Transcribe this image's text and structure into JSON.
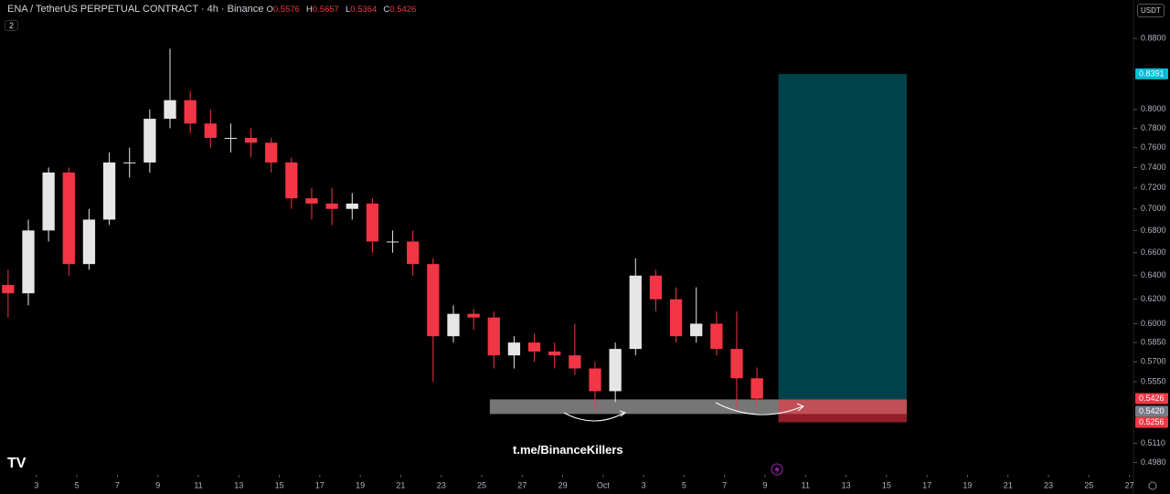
{
  "chart_data": {
    "type": "candlestick",
    "title": "ENA / TetherUS PERPETUAL CONTRACT · 4h · Binance",
    "ohlc_labels": [
      "O",
      "H",
      "L",
      "C"
    ],
    "currency": "USDT",
    "indicator_count": 2,
    "watermark": "t.me/BinanceKillers",
    "log_scale": true,
    "grid": false,
    "up_color": "#e6e6e6",
    "down_color": "#f23645",
    "x": [
      0.6,
      1.6,
      2.6,
      3.6,
      4.6,
      5.6,
      6.6,
      7.6,
      8.6,
      9.6,
      10.6,
      11.6,
      12.6,
      13.6,
      14.6,
      15.6,
      16.6,
      17.6,
      18.6,
      19.6,
      20.6,
      21.6,
      22.6,
      23.6,
      24.6,
      25.6,
      26.6,
      27.6,
      28.6,
      29.6,
      30.6,
      31.6,
      32.6,
      33.6,
      34.6,
      35.6,
      36.6,
      37.6
    ],
    "open": [
      0.632,
      0.625,
      0.68,
      0.735,
      0.65,
      0.69,
      0.745,
      0.745,
      0.79,
      0.81,
      0.785,
      0.77,
      0.77,
      0.765,
      0.745,
      0.71,
      0.705,
      0.7,
      0.705,
      0.67,
      0.67,
      0.65,
      0.59,
      0.608,
      0.605,
      0.575,
      0.585,
      0.578,
      0.575,
      0.565,
      0.548,
      0.58,
      0.64,
      0.62,
      0.59,
      0.6,
      0.58,
      0.5576
    ],
    "high": [
      0.645,
      0.69,
      0.74,
      0.74,
      0.7,
      0.755,
      0.76,
      0.8,
      0.868,
      0.82,
      0.8,
      0.785,
      0.78,
      0.77,
      0.75,
      0.72,
      0.72,
      0.715,
      0.71,
      0.68,
      0.68,
      0.655,
      0.615,
      0.612,
      0.61,
      0.59,
      0.592,
      0.585,
      0.6,
      0.57,
      0.585,
      0.655,
      0.645,
      0.63,
      0.63,
      0.61,
      0.61,
      0.5657
    ],
    "low": [
      0.605,
      0.615,
      0.67,
      0.64,
      0.645,
      0.685,
      0.73,
      0.735,
      0.78,
      0.775,
      0.76,
      0.755,
      0.75,
      0.735,
      0.7,
      0.69,
      0.685,
      0.69,
      0.66,
      0.66,
      0.64,
      0.555,
      0.585,
      0.595,
      0.565,
      0.565,
      0.57,
      0.565,
      0.56,
      0.535,
      0.54,
      0.575,
      0.61,
      0.585,
      0.585,
      0.575,
      0.535,
      0.5364
    ],
    "close": [
      0.625,
      0.68,
      0.735,
      0.65,
      0.69,
      0.745,
      0.745,
      0.79,
      0.81,
      0.785,
      0.77,
      0.77,
      0.765,
      0.745,
      0.71,
      0.705,
      0.7,
      0.705,
      0.67,
      0.67,
      0.65,
      0.59,
      0.608,
      0.605,
      0.575,
      0.585,
      0.578,
      0.575,
      0.565,
      0.548,
      0.58,
      0.64,
      0.62,
      0.59,
      0.6,
      0.58,
      0.5576,
      0.5426
    ],
    "xlim": [
      0.2,
      56.2
    ],
    "xticks": [
      {
        "value": 2,
        "label": "3"
      },
      {
        "value": 4,
        "label": "5"
      },
      {
        "value": 6,
        "label": "7"
      },
      {
        "value": 8,
        "label": "9"
      },
      {
        "value": 10,
        "label": "11"
      },
      {
        "value": 12,
        "label": "13"
      },
      {
        "value": 14,
        "label": "15"
      },
      {
        "value": 16,
        "label": "17"
      },
      {
        "value": 18,
        "label": "19"
      },
      {
        "value": 20,
        "label": "21"
      },
      {
        "value": 22,
        "label": "23"
      },
      {
        "value": 24,
        "label": "25"
      },
      {
        "value": 26,
        "label": "27"
      },
      {
        "value": 28,
        "label": "29"
      },
      {
        "value": 30,
        "label": "Oct"
      },
      {
        "value": 32,
        "label": "3"
      },
      {
        "value": 34,
        "label": "5"
      },
      {
        "value": 36,
        "label": "7"
      },
      {
        "value": 38,
        "label": "9"
      },
      {
        "value": 40,
        "label": "11"
      },
      {
        "value": 42,
        "label": "13"
      },
      {
        "value": 44,
        "label": "15"
      },
      {
        "value": 46,
        "label": "17"
      },
      {
        "value": 48,
        "label": "19"
      },
      {
        "value": 50,
        "label": "21"
      },
      {
        "value": 52,
        "label": "23"
      },
      {
        "value": 54,
        "label": "25"
      },
      {
        "value": 56,
        "label": "27"
      }
    ],
    "ylim": [
      0.4898,
      0.9266
    ],
    "yticks": [
      {
        "value": 0.498,
        "label": "0.4980"
      },
      {
        "value": 0.511,
        "label": "0.5110"
      },
      {
        "value": 0.555,
        "label": "0.5550"
      },
      {
        "value": 0.57,
        "label": "0.5700"
      },
      {
        "value": 0.585,
        "label": "0.5850"
      },
      {
        "value": 0.6,
        "label": "0.6000"
      },
      {
        "value": 0.62,
        "label": "0.6200"
      },
      {
        "value": 0.64,
        "label": "0.6400"
      },
      {
        "value": 0.66,
        "label": "0.6600"
      },
      {
        "value": 0.68,
        "label": "0.6800"
      },
      {
        "value": 0.7,
        "label": "0.7000"
      },
      {
        "value": 0.72,
        "label": "0.7200"
      },
      {
        "value": 0.74,
        "label": "0.7400"
      },
      {
        "value": 0.76,
        "label": "0.7600"
      },
      {
        "value": 0.78,
        "label": "0.7800"
      },
      {
        "value": 0.8,
        "label": "0.8000"
      },
      {
        "value": 0.88,
        "label": "0.8800"
      }
    ],
    "zone": {
      "x": [
        24.4,
        45.0
      ],
      "y": [
        0.5315,
        0.542
      ],
      "color": "#9e9e9e"
    },
    "position": {
      "x": [
        38.66,
        45.0
      ],
      "entry": {
        "value": 0.542,
        "label": "0.5420"
      },
      "target": 0.8391,
      "stop": 0.5256,
      "target_color": "#00bcd4",
      "stop_color": "#f23645"
    },
    "last_price": 0.5426
  }
}
